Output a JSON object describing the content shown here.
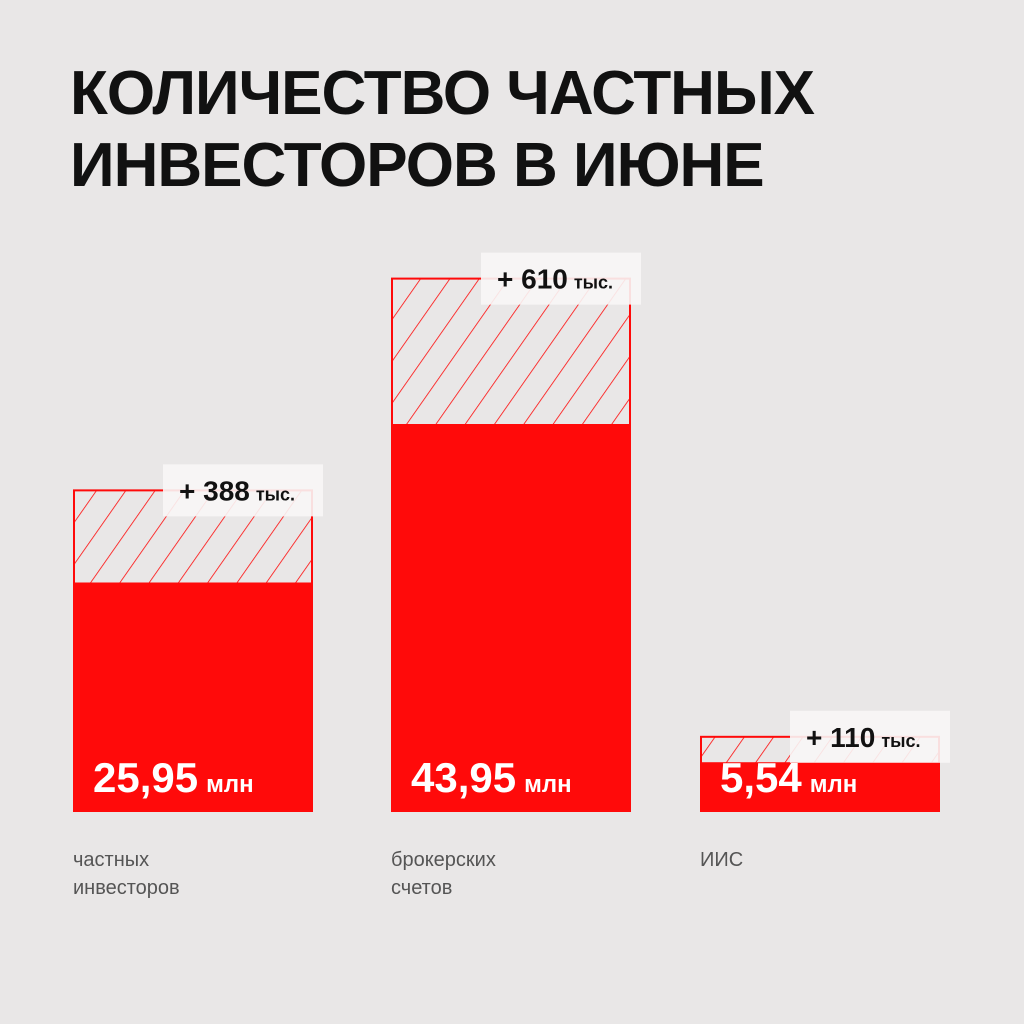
{
  "chart_data": {
    "type": "bar",
    "title": "КОЛИЧЕСТВО ЧАСТНЫХ ИНВЕСТОРОВ В ИЮНЕ",
    "categories": [
      "частных инвесторов",
      "брокерских счетов",
      "ИИС"
    ],
    "values": [
      25.95,
      43.95,
      5.54
    ],
    "value_labels": [
      "25,95",
      "43,95",
      "5,54"
    ],
    "unit": "млн",
    "change_values": [
      388,
      610,
      110
    ],
    "change_labels": [
      "+ 388",
      "+ 610",
      "+ 110"
    ],
    "change_unit": "тыс.",
    "color": "#ff0a0a"
  }
}
